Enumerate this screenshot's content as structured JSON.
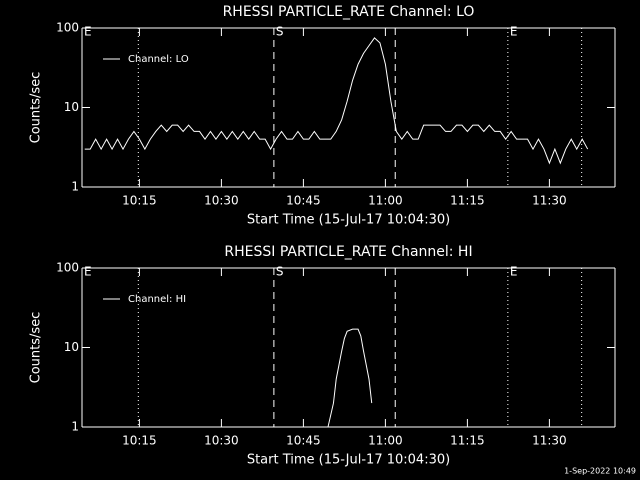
{
  "chart_data": [
    {
      "type": "line",
      "title": "RHESSI PARTICLE_RATE Channel: LO",
      "xlabel": "Start Time (15-Jul-17 10:04:30)",
      "ylabel": "Counts/sec",
      "xlim": [
        604.5,
        702
      ],
      "ylim": [
        1,
        100
      ],
      "log_y": true,
      "xticks": [
        {
          "value": 615,
          "label": "10:15"
        },
        {
          "value": 630,
          "label": "10:30"
        },
        {
          "value": 645,
          "label": "10:45"
        },
        {
          "value": 660,
          "label": "11:00"
        },
        {
          "value": 675,
          "label": "11:15"
        },
        {
          "value": 690,
          "label": "11:30"
        }
      ],
      "yticks": [
        1,
        10,
        100
      ],
      "legend": "upper left",
      "vlines": [
        {
          "x": 614.8,
          "style": "dotted"
        },
        {
          "x": 639.6,
          "style": "dashed"
        },
        {
          "x": 661.8,
          "style": "dashed"
        },
        {
          "x": 682.4,
          "style": "dotted"
        },
        {
          "x": 695.9,
          "style": "dotted"
        }
      ],
      "annotations": [
        {
          "text": "E",
          "x": 604.5
        },
        {
          "text": "S",
          "x": 639.6
        },
        {
          "text": "E",
          "x": 682.4
        }
      ],
      "series": [
        {
          "name": "Channel: LO",
          "color": "#ffffff",
          "x": [
            605,
            606,
            607,
            608,
            609,
            610,
            611,
            612,
            613,
            614,
            615,
            616,
            617,
            618,
            619,
            620,
            621,
            622,
            623,
            624,
            625,
            626,
            627,
            628,
            629,
            630,
            631,
            632,
            633,
            634,
            635,
            636,
            637,
            638,
            639,
            640,
            641,
            642,
            643,
            644,
            645,
            646,
            647,
            648,
            649,
            650,
            651,
            652,
            653,
            654,
            655,
            656,
            657,
            658,
            659,
            660,
            661,
            662,
            663,
            664,
            665,
            666,
            667,
            668,
            669,
            670,
            671,
            672,
            673,
            674,
            675,
            676,
            677,
            678,
            679,
            680,
            681,
            682,
            683,
            684,
            685,
            686,
            687,
            688,
            689,
            690,
            691,
            692,
            693,
            694,
            695,
            696,
            697
          ],
          "values": [
            3,
            3,
            4,
            3,
            4,
            3,
            4,
            3,
            4,
            5,
            4,
            3,
            4,
            5,
            6,
            5,
            6,
            6,
            5,
            6,
            5,
            5,
            4,
            5,
            4,
            5,
            4,
            5,
            4,
            5,
            4,
            5,
            4,
            4,
            3,
            4,
            5,
            4,
            4,
            5,
            4,
            4,
            5,
            4,
            4,
            4,
            5,
            7,
            12,
            22,
            35,
            48,
            60,
            75,
            65,
            35,
            12,
            5,
            4,
            5,
            4,
            4,
            6,
            6,
            6,
            6,
            5,
            5,
            6,
            6,
            5,
            6,
            6,
            5,
            6,
            5,
            5,
            4,
            5,
            4,
            4,
            4,
            3,
            4,
            3,
            2,
            3,
            2,
            3,
            4,
            3,
            4,
            3
          ]
        }
      ]
    },
    {
      "type": "line",
      "title": "RHESSI PARTICLE_RATE Channel: HI",
      "xlabel": "Start Time (15-Jul-17 10:04:30)",
      "ylabel": "Counts/sec",
      "xlim": [
        604.5,
        702
      ],
      "ylim": [
        1,
        100
      ],
      "log_y": true,
      "xticks": [
        {
          "value": 615,
          "label": "10:15"
        },
        {
          "value": 630,
          "label": "10:30"
        },
        {
          "value": 645,
          "label": "10:45"
        },
        {
          "value": 660,
          "label": "11:00"
        },
        {
          "value": 675,
          "label": "11:15"
        },
        {
          "value": 690,
          "label": "11:30"
        }
      ],
      "yticks": [
        1,
        10,
        100
      ],
      "legend": "upper left",
      "vlines": [
        {
          "x": 614.8,
          "style": "dotted"
        },
        {
          "x": 639.6,
          "style": "dashed"
        },
        {
          "x": 661.8,
          "style": "dashed"
        },
        {
          "x": 682.4,
          "style": "dotted"
        },
        {
          "x": 695.9,
          "style": "dotted"
        }
      ],
      "annotations": [
        {
          "text": "E",
          "x": 604.5
        },
        {
          "text": "S",
          "x": 639.6
        },
        {
          "text": "E",
          "x": 682.4
        }
      ],
      "series": [
        {
          "name": "Channel: HI",
          "color": "#ffffff",
          "x": [
            649.5,
            650.5,
            651,
            651.5,
            652,
            652.5,
            653,
            654,
            655,
            655.5,
            656,
            656.5,
            657,
            657.5
          ],
          "values": [
            1,
            2,
            4,
            6,
            9,
            13,
            16,
            17,
            17,
            14,
            9,
            6,
            4,
            2
          ]
        }
      ]
    }
  ],
  "footer": "1-Sep-2022 10:49"
}
